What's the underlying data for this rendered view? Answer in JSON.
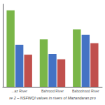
{
  "chart_data": {
    "type": "bar",
    "title": "re 2 – NSFWQI values in rivers of Mazandaran pro",
    "categories": [
      "...az River",
      "Bahrood River",
      "Baboolrood River"
    ],
    "series": [
      {
        "color": "#7ab648",
        "values": [
          100,
          62,
          75
        ]
      },
      {
        "color": "#4472c4",
        "values": [
          55,
          43,
          68
        ]
      },
      {
        "color": "#c0504d",
        "values": [
          42,
          36,
          57
        ]
      }
    ],
    "ylim": [
      0,
      108
    ],
    "grid": false,
    "tick_labels": "x"
  }
}
